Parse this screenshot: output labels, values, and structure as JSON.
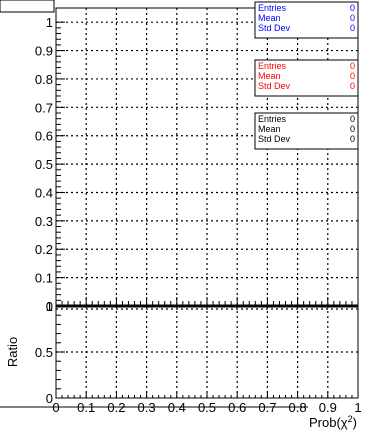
{
  "title_box": {
    "text": ""
  },
  "chart_data": [
    {
      "type": "bar",
      "panel": "top",
      "xlim": [
        0,
        1
      ],
      "ylim": [
        0,
        1.05
      ],
      "x_ticks": [
        "0",
        "0.1",
        "0.2",
        "0.3",
        "0.4",
        "0.5",
        "0.6",
        "0.7",
        "0.8",
        "0.9",
        "1"
      ],
      "y_ticks": [
        {
          "v": 0,
          "label": "0"
        },
        {
          "v": 0.1,
          "label": "0.1"
        },
        {
          "v": 0.2,
          "label": "0.2"
        },
        {
          "v": 0.3,
          "label": "0.3"
        },
        {
          "v": 0.4,
          "label": "0.4"
        },
        {
          "v": 0.5,
          "label": "0.5"
        },
        {
          "v": 0.6,
          "label": "0.6"
        },
        {
          "v": 0.7,
          "label": "0.7"
        },
        {
          "v": 0.8,
          "label": "0.8"
        },
        {
          "v": 0.9,
          "label": "0.9"
        },
        {
          "v": 1,
          "label": "1"
        }
      ],
      "grid": true,
      "series": [
        {
          "color": "#0000ff",
          "values": [
            0,
            0,
            0,
            0,
            0,
            0,
            0,
            0,
            0,
            0
          ]
        },
        {
          "color": "#ff0000",
          "values": [
            0,
            0,
            0,
            0,
            0,
            0,
            0,
            0,
            0,
            0
          ]
        },
        {
          "color": "#000000",
          "values": [
            0,
            0,
            0,
            0,
            0,
            0,
            0,
            0,
            0,
            0
          ]
        }
      ],
      "stats_boxes": [
        {
          "color": "#0000ff",
          "rows": [
            {
              "label": "Entries",
              "value": "0"
            },
            {
              "label": "Mean",
              "value": "0"
            },
            {
              "label": "Std Dev",
              "value": "0"
            }
          ]
        },
        {
          "color": "#ff0000",
          "rows": [
            {
              "label": "Entries",
              "value": "0"
            },
            {
              "label": "Mean",
              "value": "0"
            },
            {
              "label": "Std Dev",
              "value": "0"
            }
          ]
        },
        {
          "color": "#000000",
          "rows": [
            {
              "label": "Entries",
              "value": "0"
            },
            {
              "label": "Mean",
              "value": "0"
            },
            {
              "label": "Std Dev",
              "value": "0"
            }
          ]
        }
      ]
    },
    {
      "type": "line",
      "panel": "ratio",
      "xlim": [
        0,
        1
      ],
      "ylim": [
        0,
        1
      ],
      "ylabel": "Ratio",
      "xlabel": "Prob(χ²)",
      "xlabel_main": "Prob(χ",
      "xlabel_sup": "2",
      "xlabel_close": ")",
      "x_ticks": [
        "0",
        "0.1",
        "0.2",
        "0.3",
        "0.4",
        "0.5",
        "0.6",
        "0.7",
        "0.8",
        "0.9",
        "1"
      ],
      "y_ticks": [
        {
          "v": 0,
          "label": "0"
        },
        {
          "v": 0.5,
          "label": "0.5"
        },
        {
          "v": 1,
          "label": "1"
        }
      ],
      "grid": true,
      "series": [
        {
          "color": "#000000",
          "values": [
            0,
            0,
            0,
            0,
            0,
            0,
            0,
            0,
            0,
            0
          ]
        }
      ]
    }
  ]
}
